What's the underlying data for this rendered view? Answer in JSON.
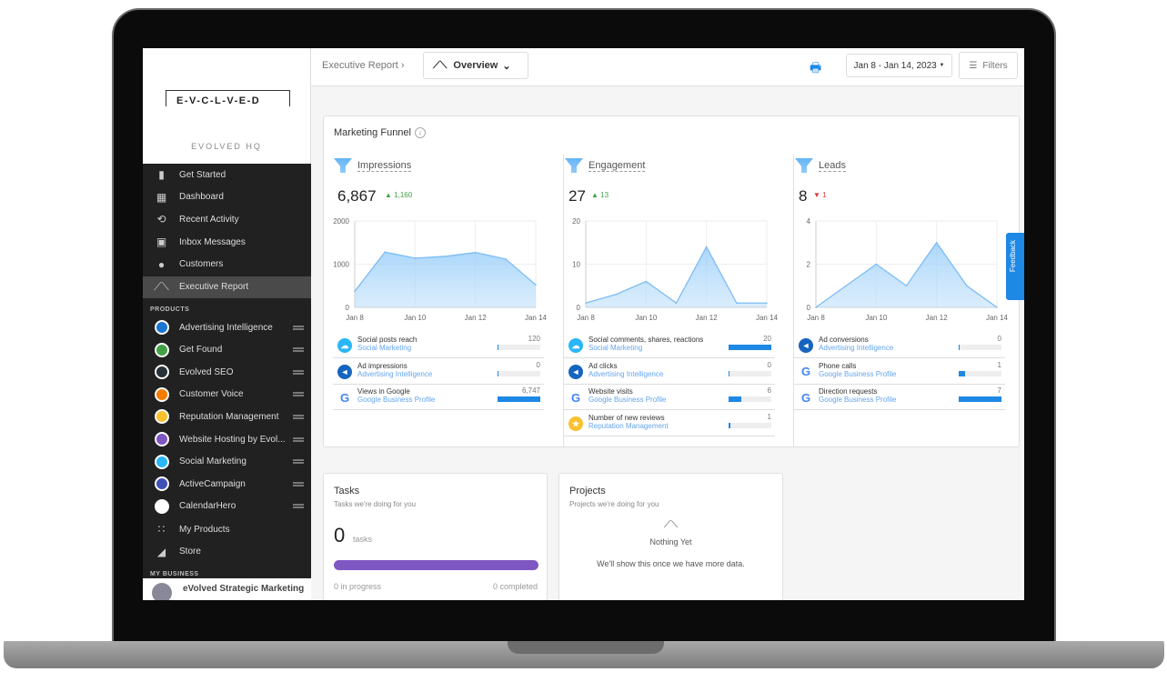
{
  "brand": {
    "logo_text": "E-V-C-L-V-E-D",
    "org": "EVOLVED HQ"
  },
  "sidebar": {
    "nav": [
      {
        "label": "Get Started",
        "icon": "book-icon"
      },
      {
        "label": "Dashboard",
        "icon": "dashboard-icon"
      },
      {
        "label": "Recent Activity",
        "icon": "history-icon"
      },
      {
        "label": "Inbox Messages",
        "icon": "chat-icon"
      },
      {
        "label": "Customers",
        "icon": "person-icon"
      },
      {
        "label": "Executive Report",
        "icon": "trend-icon",
        "active": true
      }
    ],
    "products_header": "PRODUCTS",
    "products": [
      {
        "label": "Advertising Intelligence",
        "color": "#1976d2"
      },
      {
        "label": "Get Found",
        "color": "#43a047"
      },
      {
        "label": "Evolved SEO",
        "color": "#263238"
      },
      {
        "label": "Customer Voice",
        "color": "#f57c00"
      },
      {
        "label": "Reputation Management",
        "color": "#fbc02d"
      },
      {
        "label": "Website Hosting by Evol...",
        "color": "#7e57c2"
      },
      {
        "label": "Social Marketing",
        "color": "#29b6f6"
      },
      {
        "label": "ActiveCampaign",
        "color": "#3f51b5"
      },
      {
        "label": "CalendarHero",
        "color": "#ffffff"
      }
    ],
    "more": [
      {
        "label": "My Products",
        "icon": "grid-icon"
      },
      {
        "label": "Store",
        "icon": "basket-icon"
      }
    ],
    "business_header": "MY BUSINESS",
    "business_name": "eVolved Strategic Marketing"
  },
  "header": {
    "breadcrumb": "Executive Report",
    "view": "Overview",
    "date_range": "Jan 8 - Jan 14, 2023",
    "filters": "Filters"
  },
  "funnel": {
    "title": "Marketing Funnel",
    "columns": [
      {
        "name": "Impressions",
        "total": "6,867",
        "delta": "1,160",
        "dir": "up",
        "rows": [
          {
            "title": "Social posts reach",
            "source": "Social Marketing",
            "value": "120",
            "pct": 2,
            "icon": "social-icon"
          },
          {
            "title": "Ad impressions",
            "source": "Advertising Intelligence",
            "value": "0",
            "pct": 0,
            "icon": "megaphone-icon"
          },
          {
            "title": "Views in Google",
            "source": "Google Business Profile",
            "value": "6,747",
            "pct": 100,
            "icon": "google-icon"
          }
        ]
      },
      {
        "name": "Engagement",
        "total": "27",
        "delta": "13",
        "dir": "up",
        "rows": [
          {
            "title": "Social comments, shares, reactions",
            "source": "Social Marketing",
            "value": "20",
            "pct": 100,
            "icon": "social-icon"
          },
          {
            "title": "Ad clicks",
            "source": "Advertising Intelligence",
            "value": "0",
            "pct": 0,
            "icon": "megaphone-icon"
          },
          {
            "title": "Website visits",
            "source": "Google Business Profile",
            "value": "6",
            "pct": 30,
            "icon": "google-icon"
          },
          {
            "title": "Number of new reviews",
            "source": "Reputation Management",
            "value": "1",
            "pct": 5,
            "icon": "star-icon"
          }
        ]
      },
      {
        "name": "Leads",
        "total": "8",
        "delta": "1",
        "dir": "down",
        "rows": [
          {
            "title": "Ad conversions",
            "source": "Advertising Intelligence",
            "value": "0",
            "pct": 0,
            "icon": "megaphone-icon"
          },
          {
            "title": "Phone calls",
            "source": "Google Business Profile",
            "value": "1",
            "pct": 14,
            "icon": "google-icon"
          },
          {
            "title": "Direction requests",
            "source": "Google Business Profile",
            "value": "7",
            "pct": 100,
            "icon": "google-icon"
          }
        ]
      }
    ]
  },
  "chart_data": [
    {
      "type": "area",
      "categories": [
        "Jan 8",
        "Jan 9",
        "Jan 10",
        "Jan 11",
        "Jan 12",
        "Jan 13",
        "Jan 14"
      ],
      "x_tick_labels": [
        "Jan 8",
        "Jan 10",
        "Jan 12",
        "Jan 14"
      ],
      "values": [
        370,
        1280,
        1140,
        1180,
        1270,
        1120,
        520
      ],
      "ylim": [
        0,
        2000
      ],
      "y_ticks": [
        "0",
        "1000",
        "2000"
      ],
      "grid": true,
      "color": "#90caf9"
    },
    {
      "type": "area",
      "categories": [
        "Jan 8",
        "Jan 9",
        "Jan 10",
        "Jan 11",
        "Jan 12",
        "Jan 13",
        "Jan 14"
      ],
      "x_tick_labels": [
        "Jan 8",
        "Jan 10",
        "Jan 12",
        "Jan 14"
      ],
      "values": [
        1,
        3,
        6,
        1,
        14,
        1,
        1
      ],
      "ylim": [
        0,
        20
      ],
      "y_ticks": [
        "0",
        "10",
        "20"
      ],
      "grid": true,
      "color": "#90caf9"
    },
    {
      "type": "area",
      "categories": [
        "Jan 8",
        "Jan 9",
        "Jan 10",
        "Jan 11",
        "Jan 12",
        "Jan 13",
        "Jan 14"
      ],
      "x_tick_labels": [
        "Jan 8",
        "Jan 10",
        "Jan 12",
        "Jan 14"
      ],
      "values": [
        0,
        1,
        2,
        1,
        3,
        1,
        0
      ],
      "ylim": [
        0,
        4
      ],
      "y_ticks": [
        "0",
        "2",
        "4"
      ],
      "grid": true,
      "color": "#90caf9"
    }
  ],
  "tasks": {
    "title": "Tasks",
    "subtitle": "Tasks we're doing for you",
    "count": "0",
    "unit": "tasks",
    "in_progress": "0 in progress",
    "completed": "0 completed",
    "bar_color": "#7e57c2"
  },
  "projects": {
    "title": "Projects",
    "subtitle": "Projects we're doing for you",
    "empty_title": "Nothing Yet",
    "empty_text": "We'll show this once we have more data."
  },
  "feedback": "Feedback"
}
